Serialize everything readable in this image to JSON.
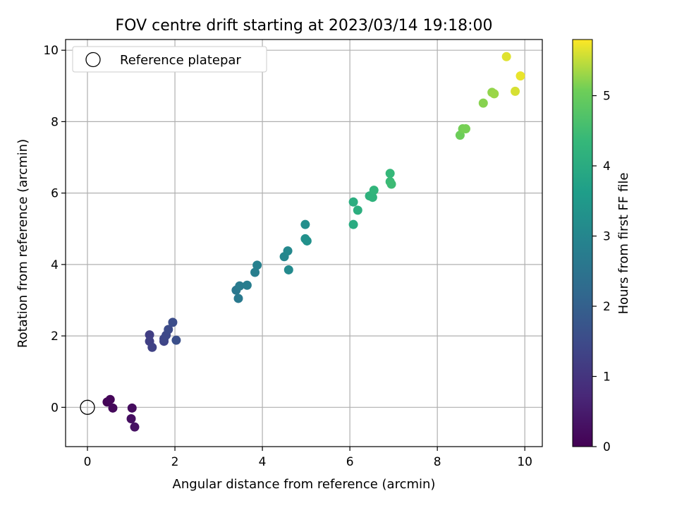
{
  "chart_data": {
    "type": "scatter",
    "title": "FOV centre drift starting at 2023/03/14 19:18:00",
    "xlabel": "Angular distance from reference (arcmin)",
    "ylabel": "Rotation from reference (arcmin)",
    "xlim": [
      -0.5,
      10.4
    ],
    "ylim": [
      -1.1,
      10.3
    ],
    "x_ticks": [
      0,
      2,
      4,
      6,
      8,
      10
    ],
    "y_ticks": [
      0,
      2,
      4,
      6,
      8,
      10
    ],
    "grid": true,
    "legend": {
      "location": "top-left",
      "entries": [
        "Reference platepar"
      ]
    },
    "reference_point": {
      "x": 0,
      "y": 0
    },
    "colorbar": {
      "label": "Hours from first FF file",
      "colormap": "viridis",
      "range": [
        0,
        5.8
      ],
      "ticks": [
        0,
        1,
        2,
        3,
        4,
        5
      ]
    },
    "points": [
      {
        "x": 0.45,
        "y": 0.15,
        "h": 0.05
      },
      {
        "x": 0.52,
        "y": 0.22,
        "h": 0.1
      },
      {
        "x": 0.58,
        "y": -0.02,
        "h": 0.15
      },
      {
        "x": 1.02,
        "y": -0.02,
        "h": 0.2
      },
      {
        "x": 1.0,
        "y": -0.32,
        "h": 0.25
      },
      {
        "x": 1.08,
        "y": -0.55,
        "h": 0.3
      },
      {
        "x": 1.42,
        "y": 2.03,
        "h": 1.2
      },
      {
        "x": 1.42,
        "y": 1.85,
        "h": 1.25
      },
      {
        "x": 1.48,
        "y": 1.68,
        "h": 1.3
      },
      {
        "x": 1.75,
        "y": 1.85,
        "h": 1.35
      },
      {
        "x": 1.75,
        "y": 1.92,
        "h": 1.4
      },
      {
        "x": 1.8,
        "y": 2.02,
        "h": 1.45
      },
      {
        "x": 1.85,
        "y": 2.18,
        "h": 1.5
      },
      {
        "x": 1.95,
        "y": 2.38,
        "h": 1.55
      },
      {
        "x": 2.03,
        "y": 1.88,
        "h": 1.6
      },
      {
        "x": 3.4,
        "y": 3.28,
        "h": 2.6
      },
      {
        "x": 3.45,
        "y": 3.05,
        "h": 2.65
      },
      {
        "x": 3.48,
        "y": 3.4,
        "h": 2.7
      },
      {
        "x": 3.65,
        "y": 3.42,
        "h": 2.75
      },
      {
        "x": 3.83,
        "y": 3.78,
        "h": 2.8
      },
      {
        "x": 3.88,
        "y": 3.98,
        "h": 2.85
      },
      {
        "x": 4.5,
        "y": 4.22,
        "h": 3.0
      },
      {
        "x": 4.58,
        "y": 4.38,
        "h": 3.05
      },
      {
        "x": 4.6,
        "y": 3.85,
        "h": 3.1
      },
      {
        "x": 4.98,
        "y": 5.12,
        "h": 3.2
      },
      {
        "x": 4.98,
        "y": 4.72,
        "h": 3.25
      },
      {
        "x": 5.02,
        "y": 4.66,
        "h": 3.3
      },
      {
        "x": 6.08,
        "y": 5.12,
        "h": 4.0
      },
      {
        "x": 6.08,
        "y": 5.75,
        "h": 4.05
      },
      {
        "x": 6.18,
        "y": 5.52,
        "h": 4.1
      },
      {
        "x": 6.45,
        "y": 5.92,
        "h": 4.15
      },
      {
        "x": 6.52,
        "y": 5.88,
        "h": 4.2
      },
      {
        "x": 6.55,
        "y": 6.08,
        "h": 4.25
      },
      {
        "x": 6.92,
        "y": 6.55,
        "h": 4.35
      },
      {
        "x": 6.92,
        "y": 6.32,
        "h": 4.4
      },
      {
        "x": 6.95,
        "y": 6.25,
        "h": 4.45
      },
      {
        "x": 8.52,
        "y": 7.62,
        "h": 5.05
      },
      {
        "x": 8.58,
        "y": 7.8,
        "h": 5.1
      },
      {
        "x": 8.65,
        "y": 7.8,
        "h": 5.12
      },
      {
        "x": 9.05,
        "y": 8.52,
        "h": 5.2
      },
      {
        "x": 9.25,
        "y": 8.82,
        "h": 5.25
      },
      {
        "x": 9.3,
        "y": 8.78,
        "h": 5.3
      },
      {
        "x": 9.58,
        "y": 9.82,
        "h": 5.65
      },
      {
        "x": 9.78,
        "y": 8.85,
        "h": 5.6
      },
      {
        "x": 9.9,
        "y": 9.28,
        "h": 5.7
      }
    ]
  }
}
